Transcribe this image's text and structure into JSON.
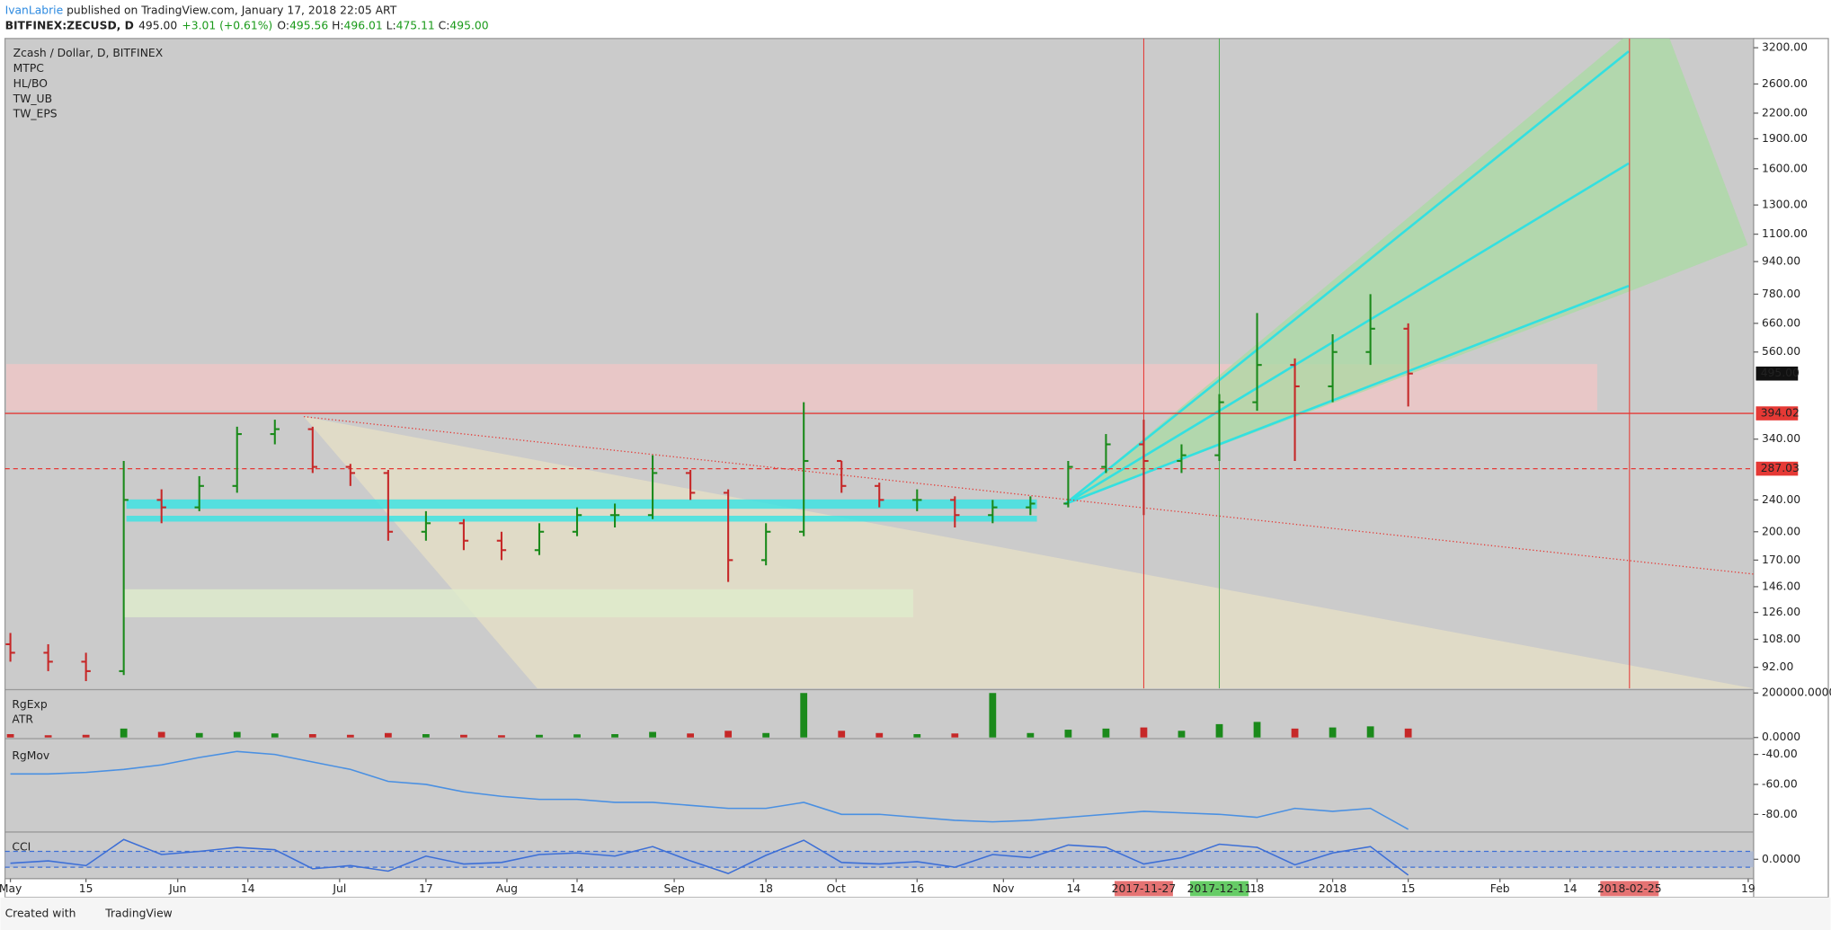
{
  "header": {
    "author": "IvanLabrie",
    "published": "published on TradingView.com, January 17, 2018 22:05 ART",
    "symbol": "BITFINEX:ZECUSD, D",
    "price": "495.00",
    "change": "+3.01 (+0.61%)",
    "o_label": "O:",
    "o": "495.56",
    "h_label": "H:",
    "h": "496.01",
    "l_label": "L:",
    "l": "475.11",
    "c_label": "C:",
    "c": "495.00"
  },
  "footer": {
    "created": "Created with",
    "brand": "TradingView"
  },
  "chart_data": {
    "type": "candlestick",
    "title": "Zcash / Dollar, D, BITFINEX",
    "indicators": [
      "MTPC",
      "HL/BO",
      "TW_UB",
      "TW_EPS"
    ],
    "log_scale": true,
    "up_color": "#1b8a1b",
    "down_color": "#c62828",
    "dates": [
      "2017-05-01",
      "2017-05-08",
      "2017-05-15",
      "2017-05-22",
      "2017-05-29",
      "2017-06-05",
      "2017-06-12",
      "2017-06-19",
      "2017-06-26",
      "2017-07-03",
      "2017-07-10",
      "2017-07-17",
      "2017-07-24",
      "2017-07-31",
      "2017-08-07",
      "2017-08-14",
      "2017-08-21",
      "2017-08-28",
      "2017-09-04",
      "2017-09-11",
      "2017-09-18",
      "2017-09-25",
      "2017-10-02",
      "2017-10-09",
      "2017-10-16",
      "2017-10-23",
      "2017-10-30",
      "2017-11-06",
      "2017-11-13",
      "2017-11-20",
      "2017-11-27",
      "2017-12-04",
      "2017-12-11",
      "2017-12-18",
      "2017-12-25",
      "2018-01-01",
      "2018-01-08",
      "2018-01-15"
    ],
    "open": [
      105,
      100,
      95,
      90,
      240,
      230,
      260,
      350,
      360,
      290,
      280,
      200,
      210,
      190,
      180,
      200,
      220,
      220,
      280,
      250,
      170,
      200,
      300,
      260,
      240,
      240,
      220,
      230,
      235,
      290,
      330,
      300,
      310,
      420,
      520,
      460,
      560,
      640
    ],
    "high": [
      112,
      105,
      100,
      300,
      255,
      275,
      365,
      380,
      365,
      295,
      285,
      225,
      215,
      200,
      210,
      230,
      235,
      310,
      285,
      255,
      210,
      420,
      300,
      265,
      255,
      245,
      240,
      245,
      300,
      350,
      380,
      330,
      440,
      700,
      540,
      620,
      780,
      660
    ],
    "low": [
      95,
      90,
      85,
      88,
      210,
      225,
      250,
      330,
      280,
      260,
      190,
      190,
      180,
      170,
      175,
      195,
      205,
      215,
      240,
      150,
      165,
      195,
      250,
      230,
      225,
      205,
      210,
      220,
      230,
      280,
      220,
      280,
      300,
      400,
      300,
      420,
      520,
      410
    ],
    "close": [
      100,
      95,
      90,
      240,
      230,
      260,
      350,
      360,
      290,
      280,
      200,
      210,
      190,
      180,
      200,
      220,
      220,
      280,
      250,
      170,
      200,
      300,
      260,
      240,
      240,
      220,
      230,
      235,
      290,
      330,
      300,
      310,
      420,
      520,
      460,
      560,
      640,
      495
    ],
    "xlim": [
      "2017-04-30",
      "2018-03-20"
    ],
    "xticks": [
      {
        "value": "2017-05-01",
        "label": "May"
      },
      {
        "value": "2017-05-15",
        "label": "15"
      },
      {
        "value": "2017-06-01",
        "label": "Jun"
      },
      {
        "value": "2017-06-14",
        "label": "14"
      },
      {
        "value": "2017-07-01",
        "label": "Jul"
      },
      {
        "value": "2017-07-17",
        "label": "17"
      },
      {
        "value": "2017-08-01",
        "label": "Aug"
      },
      {
        "value": "2017-08-14",
        "label": "14"
      },
      {
        "value": "2017-09-01",
        "label": "Sep"
      },
      {
        "value": "2017-09-18",
        "label": "18"
      },
      {
        "value": "2017-10-01",
        "label": "Oct"
      },
      {
        "value": "2017-10-16",
        "label": "16"
      },
      {
        "value": "2017-11-01",
        "label": "Nov"
      },
      {
        "value": "2017-11-14",
        "label": "14"
      },
      {
        "value": "2017-12-18",
        "label": "18"
      },
      {
        "value": "2018-01-01",
        "label": "2018"
      },
      {
        "value": "2018-01-15",
        "label": "15"
      },
      {
        "value": "2018-02-01",
        "label": "Feb"
      },
      {
        "value": "2018-02-14",
        "label": "14"
      },
      {
        "value": "2018-03-19",
        "label": "19"
      }
    ],
    "marker_lines": [
      {
        "date": "2017-11-27",
        "color": "#e53935",
        "label_color": "#e57373"
      },
      {
        "date": "2017-12-11",
        "color": "#4caf50",
        "label_color": "#66cc66"
      },
      {
        "date": "2018-02-25",
        "color": "#e53935",
        "label_color": "#e57373"
      }
    ],
    "ylim": [
      81.5,
      3374
    ],
    "yticks": [
      {
        "value": 3200,
        "label": "3200.00"
      },
      {
        "value": 2600,
        "label": "2600.00"
      },
      {
        "value": 2200,
        "label": "2200.00"
      },
      {
        "value": 1900,
        "label": "1900.00"
      },
      {
        "value": 1600,
        "label": "1600.00"
      },
      {
        "value": 1300,
        "label": "1300.00"
      },
      {
        "value": 1100,
        "label": "1100.00"
      },
      {
        "value": 940,
        "label": "940.00"
      },
      {
        "value": 780,
        "label": "780.00"
      },
      {
        "value": 660,
        "label": "660.00"
      },
      {
        "value": 560,
        "label": "560.00"
      },
      {
        "value": 340,
        "label": "340.00"
      },
      {
        "value": 240,
        "label": "240.00"
      },
      {
        "value": 200,
        "label": "200.00"
      },
      {
        "value": 170,
        "label": "170.00"
      },
      {
        "value": 146,
        "label": "146.00"
      },
      {
        "value": 126,
        "label": "126.00"
      },
      {
        "value": 108,
        "label": "108.00"
      },
      {
        "value": 92,
        "label": "92.00"
      }
    ],
    "price_lines": [
      {
        "value": 394.02,
        "color": "#e53935",
        "style": "solid"
      },
      {
        "value": 287.03,
        "color": "#e53935",
        "style": "dashed"
      }
    ],
    "last_price": {
      "value": 495,
      "label": "495.00"
    },
    "volume": {
      "labels": [
        "RgExp",
        "ATR"
      ],
      "values": [
        15000,
        10000,
        12000,
        40000,
        25000,
        20000,
        25000,
        18000,
        15000,
        12000,
        20000,
        15000,
        12000,
        10000,
        12000,
        14000,
        15000,
        25000,
        18000,
        30000,
        20000,
        200000,
        30000,
        20000,
        15000,
        18000,
        200000,
        20000,
        35000,
        40000,
        45000,
        30000,
        60000,
        70000,
        40000,
        45000,
        50000,
        40000
      ],
      "ylim": [
        0,
        210000
      ],
      "yticks": [
        {
          "value": 200000,
          "label": "200000.0000"
        },
        {
          "value": 0,
          "label": "0.0000"
        }
      ]
    },
    "rgmov": {
      "label": "RgMov",
      "color": "#4a90e2",
      "values": [
        -53,
        -53,
        -52,
        -50,
        -47,
        -42,
        -38,
        -40,
        -45,
        -50,
        -58,
        -60,
        -65,
        -68,
        -70,
        -70,
        -72,
        -72,
        -74,
        -76,
        -76,
        -72,
        -80,
        -80,
        -82,
        -84,
        -85,
        -84,
        -82,
        -80,
        -78,
        -79,
        -80,
        -82,
        -76,
        -78,
        -76,
        -90
      ],
      "ylim": [
        -91,
        -31
      ],
      "yticks": [
        {
          "value": -40,
          "label": "-40.00"
        },
        {
          "value": -60,
          "label": "-60.00"
        },
        {
          "value": -80,
          "label": "-80.00"
        }
      ]
    },
    "cci": {
      "label": "CCI",
      "color": "#3d6fd6",
      "values": [
        -50,
        -20,
        -80,
        250,
        60,
        100,
        150,
        120,
        -120,
        -80,
        -150,
        40,
        -60,
        -40,
        60,
        80,
        40,
        160,
        -20,
        -180,
        50,
        240,
        -40,
        -60,
        -30,
        -100,
        60,
        20,
        180,
        150,
        -60,
        20,
        190,
        150,
        -70,
        80,
        160,
        -200
      ],
      "ylim": [
        -230,
        315
      ],
      "yticks": [
        {
          "value": 0,
          "label": "0.0000"
        }
      ],
      "band": [
        -100,
        100
      ]
    }
  }
}
